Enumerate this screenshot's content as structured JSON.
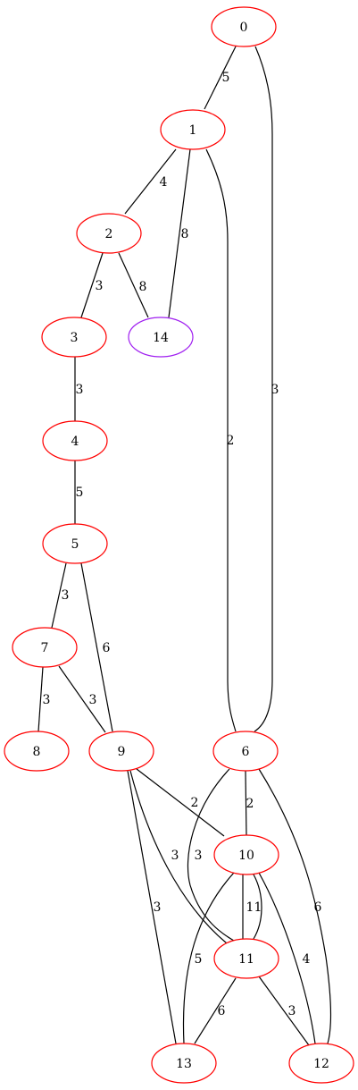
{
  "graph": {
    "type": "undirected-weighted",
    "colors": {
      "default_node": "#ff0000",
      "highlight_node": "#a020f0",
      "edge": "#000000"
    },
    "nodes": [
      {
        "id": "0",
        "label": "0",
        "color": "#ff0000"
      },
      {
        "id": "1",
        "label": "1",
        "color": "#ff0000"
      },
      {
        "id": "2",
        "label": "2",
        "color": "#ff0000"
      },
      {
        "id": "3",
        "label": "3",
        "color": "#ff0000"
      },
      {
        "id": "4",
        "label": "4",
        "color": "#ff0000"
      },
      {
        "id": "5",
        "label": "5",
        "color": "#ff0000"
      },
      {
        "id": "6",
        "label": "6",
        "color": "#ff0000"
      },
      {
        "id": "7",
        "label": "7",
        "color": "#ff0000"
      },
      {
        "id": "8",
        "label": "8",
        "color": "#ff0000"
      },
      {
        "id": "9",
        "label": "9",
        "color": "#ff0000"
      },
      {
        "id": "10",
        "label": "10",
        "color": "#ff0000"
      },
      {
        "id": "11",
        "label": "11",
        "color": "#ff0000"
      },
      {
        "id": "12",
        "label": "12",
        "color": "#ff0000"
      },
      {
        "id": "13",
        "label": "13",
        "color": "#ff0000"
      },
      {
        "id": "14",
        "label": "14",
        "color": "#a020f0"
      }
    ],
    "edges": [
      {
        "source": "0",
        "target": "1",
        "weight": "5"
      },
      {
        "source": "0",
        "target": "6",
        "weight": "3"
      },
      {
        "source": "1",
        "target": "2",
        "weight": "4"
      },
      {
        "source": "1",
        "target": "14",
        "weight": "8"
      },
      {
        "source": "1",
        "target": "6",
        "weight": "2"
      },
      {
        "source": "2",
        "target": "3",
        "weight": "3"
      },
      {
        "source": "2",
        "target": "14",
        "weight": "8"
      },
      {
        "source": "3",
        "target": "4",
        "weight": "3"
      },
      {
        "source": "4",
        "target": "5",
        "weight": "5"
      },
      {
        "source": "5",
        "target": "7",
        "weight": "3"
      },
      {
        "source": "5",
        "target": "9",
        "weight": "6"
      },
      {
        "source": "7",
        "target": "8",
        "weight": "3"
      },
      {
        "source": "7",
        "target": "9",
        "weight": "3"
      },
      {
        "source": "9",
        "target": "10",
        "weight": "2"
      },
      {
        "source": "9",
        "target": "11",
        "weight": "3"
      },
      {
        "source": "9",
        "target": "13",
        "weight": "3"
      },
      {
        "source": "6",
        "target": "10",
        "weight": "2"
      },
      {
        "source": "6",
        "target": "11",
        "weight": "3"
      },
      {
        "source": "6",
        "target": "12",
        "weight": "6"
      },
      {
        "source": "10",
        "target": "11",
        "weight": "1"
      },
      {
        "source": "10",
        "target": "11",
        "weight": "1"
      },
      {
        "source": "10",
        "target": "13",
        "weight": "5"
      },
      {
        "source": "10",
        "target": "12",
        "weight": "4"
      },
      {
        "source": "11",
        "target": "13",
        "weight": "6"
      },
      {
        "source": "11",
        "target": "12",
        "weight": "3"
      }
    ]
  }
}
